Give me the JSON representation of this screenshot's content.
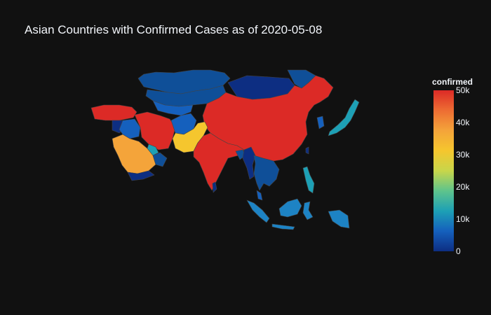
{
  "title": "Asian Countries with Confirmed Cases as of 2020-05-08",
  "colorbar": {
    "title": "confirmed",
    "range": [
      0,
      50000
    ],
    "ticks": [
      "0",
      "10k",
      "20k",
      "30k",
      "40k",
      "50k"
    ],
    "colorscale": [
      "#0d2e82",
      "#1560bd",
      "#1da0b5",
      "#5ec48c",
      "#c8d64a",
      "#f5c62e",
      "#f4a43a",
      "#ed6d33",
      "#dc2a26"
    ]
  },
  "countries": [
    {
      "name": "Russia",
      "level": "low"
    },
    {
      "name": "Kazakhstan",
      "level": "low"
    },
    {
      "name": "Mongolia",
      "level": "very-low"
    },
    {
      "name": "China",
      "level": "max"
    },
    {
      "name": "Turkey",
      "level": "max"
    },
    {
      "name": "Iran",
      "level": "max"
    },
    {
      "name": "Saudi Arabia",
      "level": "high"
    },
    {
      "name": "Pakistan",
      "level": "mid-high"
    },
    {
      "name": "India",
      "level": "max"
    },
    {
      "name": "Afghanistan",
      "level": "low"
    },
    {
      "name": "Japan",
      "level": "mid-low"
    },
    {
      "name": "Indonesia",
      "level": "mid-low"
    },
    {
      "name": "Philippines",
      "level": "mid-low"
    },
    {
      "name": "Singapore",
      "level": "mid-low"
    },
    {
      "name": "Bangladesh",
      "level": "low"
    },
    {
      "name": "Qatar",
      "level": "mid-low"
    }
  ]
}
